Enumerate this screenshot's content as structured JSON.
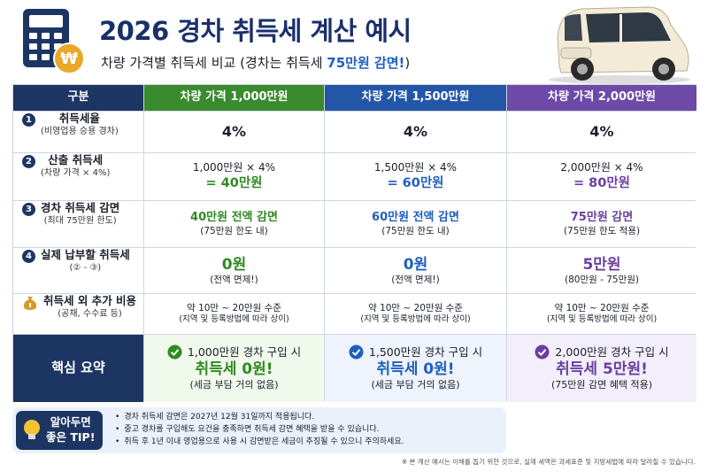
{
  "header": {
    "title": "2026 경차 취득세 계산 예시",
    "subtitle": [
      "차량 가격별 취득세 비교 (경차는 취득세 ",
      "75만원 감면!",
      ")"
    ],
    "coin_symbol": "₩"
  },
  "table": {
    "columns": [
      "구분",
      "차량 가격 1,000만원",
      "차량 가격 1,500만원",
      "차량 가격 2,000만원"
    ],
    "rows": [
      {
        "marker": "1",
        "label": "취득세율",
        "sublabel": "(비영업용 승용 경차)",
        "cells": [
          [
            "4%"
          ],
          [
            "4%"
          ],
          [
            "4%"
          ]
        ]
      },
      {
        "marker": "2",
        "label": "산출 취득세",
        "sublabel": "(차량 가격 × 4%)",
        "cells": [
          [
            "1,000만원 × 4%",
            "= 40만원"
          ],
          [
            "1,500만원 × 4%",
            "= 60만원"
          ],
          [
            "2,000만원 × 4%",
            "= 80만원"
          ]
        ]
      },
      {
        "marker": "3",
        "label": "경차 취득세 감면",
        "sublabel": "(최대 75만원 한도)",
        "cells": [
          [
            "40만원 전액 감면",
            "(75만원 한도 내)"
          ],
          [
            "60만원 전액 감면",
            "(75만원 한도 내)"
          ],
          [
            "75만원 감면",
            "(75만원 한도 적용)"
          ]
        ]
      },
      {
        "marker": "4",
        "label": "실제 납부할 취득세",
        "sublabel": "(② - ③)",
        "cells": [
          [
            "0원",
            "(전액 면제!)"
          ],
          [
            "0원",
            "(전액 면제!)"
          ],
          [
            "5만원",
            "(80만원 - 75만원)"
          ]
        ]
      },
      {
        "label": "취득세 외 추가 비용",
        "sublabel": "(공채, 수수료 등)",
        "cells": [
          [
            "약 10만 ~ 20만원 수준",
            "(지역 및 등록방법에 따라 상이)"
          ],
          [
            "약 10만 ~ 20만원 수준",
            "(지역 및 등록방법에 따라 상이)"
          ],
          [
            "약 10만 ~ 20만원 수준",
            "(지역 및 등록방법에 따라 상이)"
          ]
        ]
      }
    ],
    "summary": {
      "label": "핵심 요약",
      "cells": [
        [
          "1,000만원 경차 구입 시",
          "취득세 0원!",
          "(세금 부담 거의 없음)"
        ],
        [
          "1,500만원 경차 구입 시",
          "취득세 0원!",
          "(세금 부담 거의 없음)"
        ],
        [
          "2,000만원 경차 구입 시",
          "취득세 5만원!",
          "(75만원 감면 혜택 적용)"
        ]
      ]
    }
  },
  "tip": {
    "label": [
      "알아두면",
      "좋은 TIP!"
    ],
    "items": [
      "경차 취득세 감면은 2027년 12월 31일까지 적용됩니다.",
      "중고 경차를 구입해도 요건을 충족하면 취득세 감면 혜택을 받을 수 있습니다.",
      "취득 후 1년 이내 영업용으로 사용 시 감면받은 세금이 추징될 수 있으니 주의하세요."
    ]
  },
  "footnote": "※ 본 계산 예시는 이해를 돕기 위한 것으로, 실제 세액은 과세표준 및 지방세법에 따라 달라질 수 있습니다."
}
